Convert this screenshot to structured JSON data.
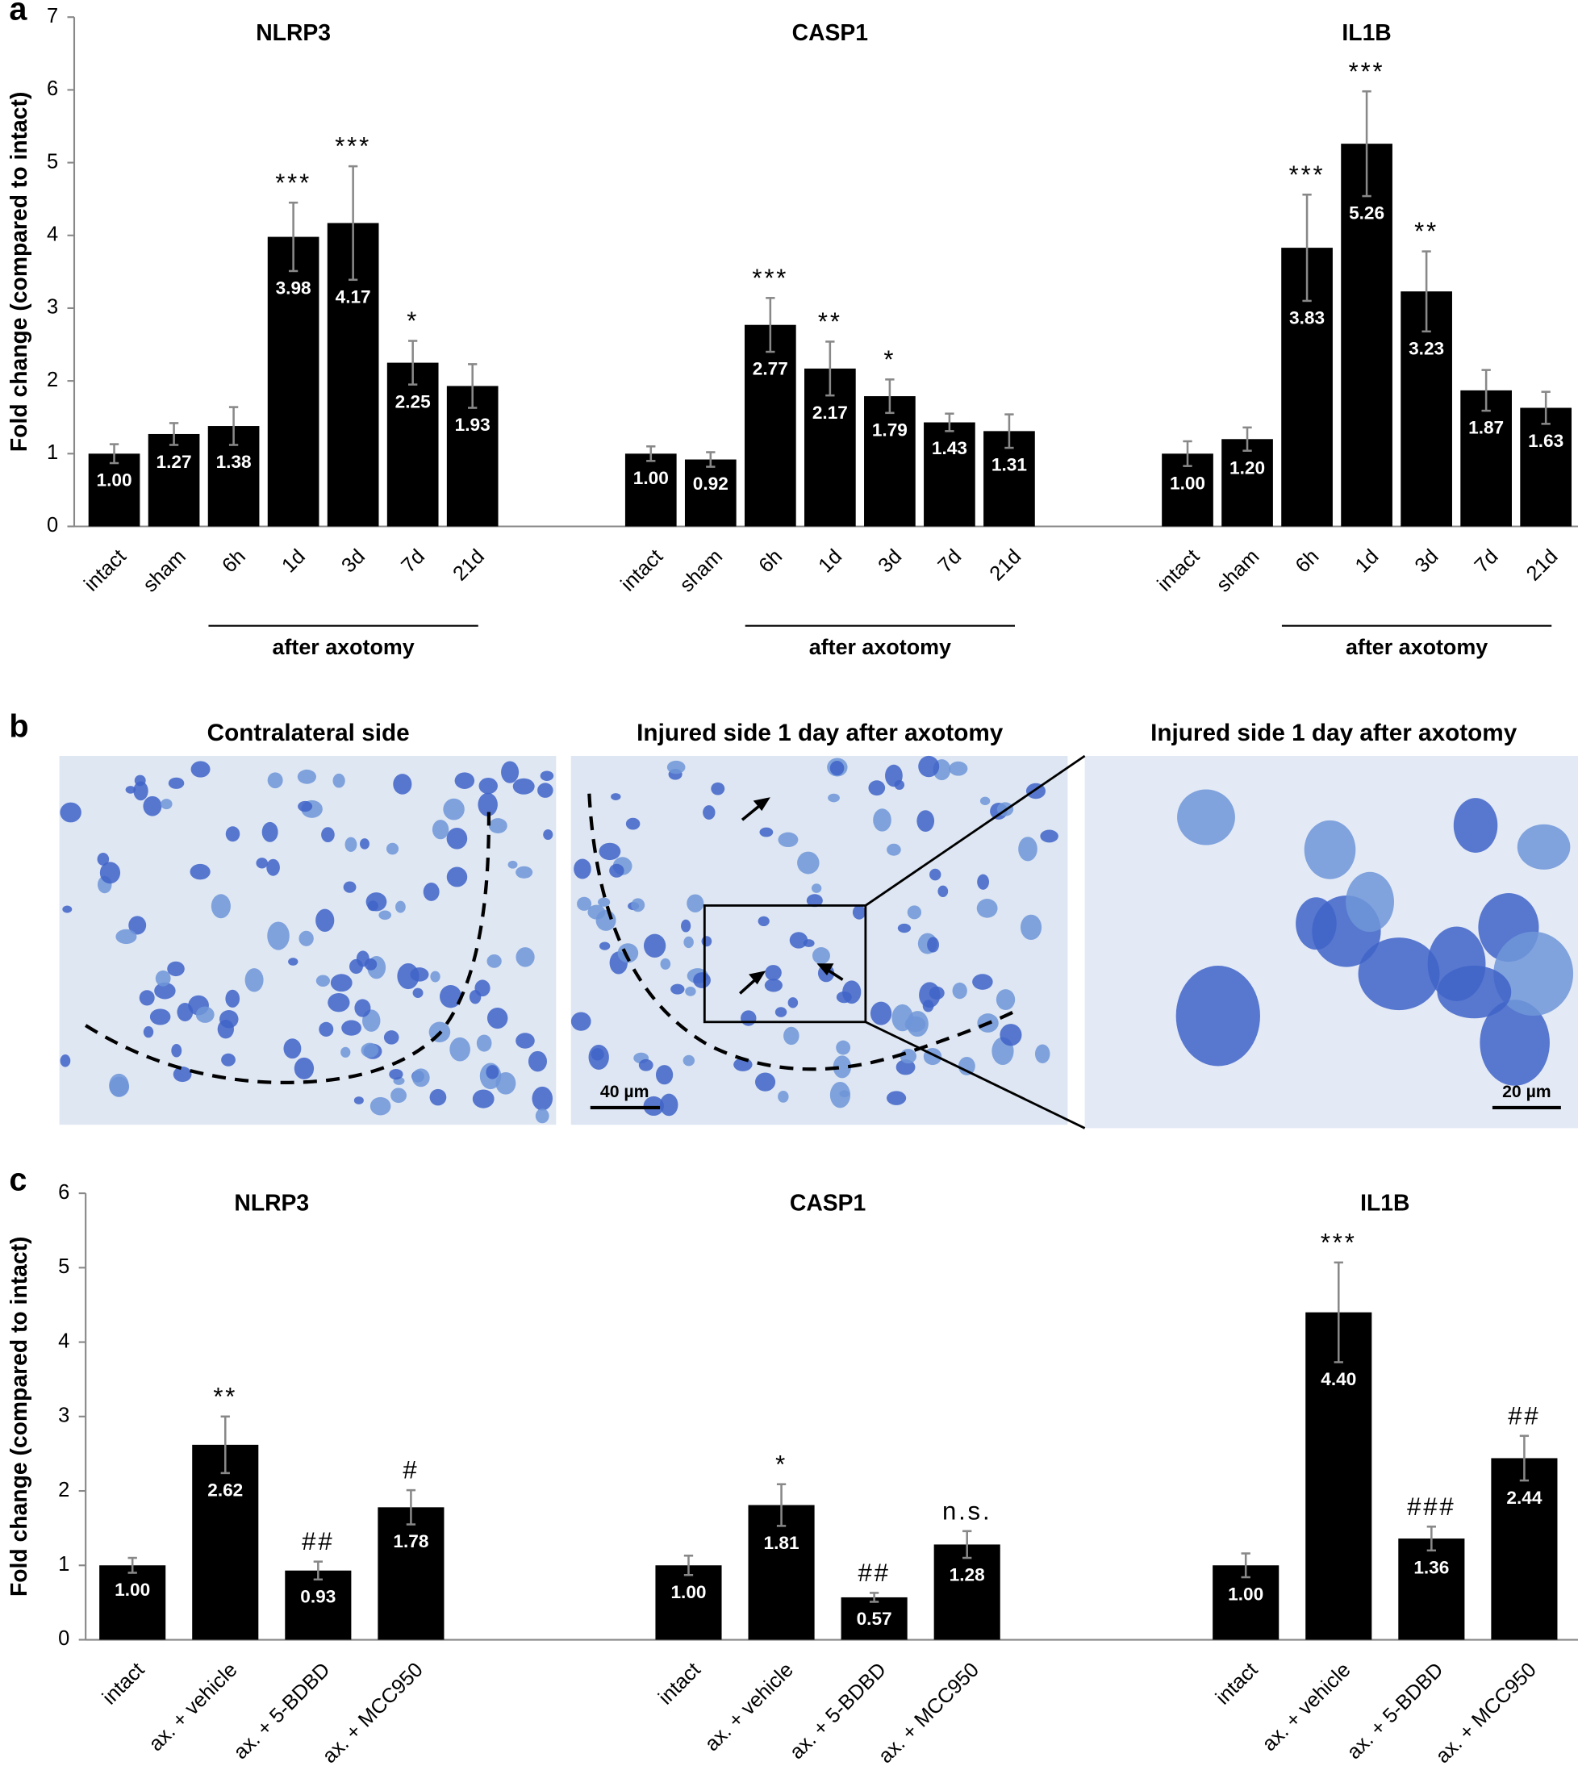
{
  "chart_data": [
    {
      "type": "bar",
      "panel_label": "a",
      "ylabel": "Fold change (compared to intact)",
      "ylim": [
        0,
        7
      ],
      "yticks": [
        0,
        1,
        2,
        3,
        4,
        5,
        6,
        7
      ],
      "color": "#000000",
      "bracket_label": "after axotomy",
      "groups": [
        {
          "title": "NLRP3",
          "categories": [
            "intact",
            "sham",
            "6h",
            "1d",
            "3d",
            "7d",
            "21d"
          ],
          "values": [
            1.0,
            1.27,
            1.38,
            3.98,
            4.17,
            2.25,
            1.93
          ],
          "value_labels": [
            "1.00",
            "1.27",
            "1.38",
            "3.98",
            "4.17",
            "2.25",
            "1.93"
          ],
          "errors": [
            0.13,
            0.15,
            0.26,
            0.47,
            0.78,
            0.3,
            0.3
          ],
          "annotations": [
            null,
            null,
            null,
            "***",
            "***",
            "*",
            null
          ]
        },
        {
          "title": "CASP1",
          "categories": [
            "intact",
            "sham",
            "6h",
            "1d",
            "3d",
            "7d",
            "21d"
          ],
          "values": [
            1.0,
            0.92,
            2.77,
            2.17,
            1.79,
            1.43,
            1.31
          ],
          "value_labels": [
            "1.00",
            "0.92",
            "2.77",
            "2.17",
            "1.79",
            "1.43",
            "1.31"
          ],
          "errors": [
            0.1,
            0.1,
            0.37,
            0.37,
            0.23,
            0.12,
            0.23
          ],
          "annotations": [
            null,
            null,
            "***",
            "**",
            "*",
            null,
            null
          ]
        },
        {
          "title": "IL1B",
          "categories": [
            "intact",
            "sham",
            "6h",
            "1d",
            "3d",
            "7d",
            "21d"
          ],
          "values": [
            1.0,
            1.2,
            3.83,
            5.26,
            3.23,
            1.87,
            1.63
          ],
          "value_labels": [
            "1.00",
            "1.20",
            "3.83",
            "5.26",
            "3.23",
            "1.87",
            "1.63"
          ],
          "errors": [
            0.17,
            0.16,
            0.73,
            0.72,
            0.55,
            0.28,
            0.22
          ],
          "annotations": [
            null,
            null,
            "***",
            "***",
            "**",
            null,
            null
          ]
        }
      ]
    },
    {
      "type": "bar",
      "panel_label": "c",
      "ylabel": "Fold change (compared to intact)",
      "ylim": [
        0,
        6
      ],
      "yticks": [
        0,
        1,
        2,
        3,
        4,
        5,
        6
      ],
      "color": "#000000",
      "groups": [
        {
          "title": "NLRP3",
          "categories": [
            "intact",
            "ax. + vehicle",
            "ax. + 5-BDBD",
            "ax. + MCC950"
          ],
          "values": [
            1.0,
            2.62,
            0.93,
            1.78
          ],
          "value_labels": [
            "1.00",
            "2.62",
            "0.93",
            "1.78"
          ],
          "errors": [
            0.1,
            0.38,
            0.12,
            0.23
          ],
          "annotations": [
            null,
            "**",
            "##",
            "#"
          ]
        },
        {
          "title": "CASP1",
          "categories": [
            "intact",
            "ax. + vehicle",
            "ax. + 5-BDBD",
            "ax. + MCC950"
          ],
          "values": [
            1.0,
            1.81,
            0.57,
            1.28
          ],
          "value_labels": [
            "1.00",
            "1.81",
            "0.57",
            "1.28"
          ],
          "errors": [
            0.13,
            0.28,
            0.06,
            0.18
          ],
          "annotations": [
            null,
            "*",
            "##",
            "n.s."
          ]
        },
        {
          "title": "IL1B",
          "categories": [
            "intact",
            "ax. + vehicle",
            "ax. + 5-BDBD",
            "ax. + MCC950"
          ],
          "values": [
            1.0,
            4.4,
            1.36,
            2.44
          ],
          "value_labels": [
            "1.00",
            "4.40",
            "1.36",
            "2.44"
          ],
          "errors": [
            0.16,
            0.67,
            0.16,
            0.3
          ],
          "annotations": [
            null,
            "***",
            "###",
            "##"
          ]
        }
      ]
    }
  ],
  "micrographs": {
    "panel_label": "b",
    "titles": [
      "Contralateral side",
      "Injured side 1 day after axotomy",
      "Injured side 1 day after axotomy"
    ],
    "scale_bars": [
      "40 µm",
      "20 µm"
    ]
  }
}
